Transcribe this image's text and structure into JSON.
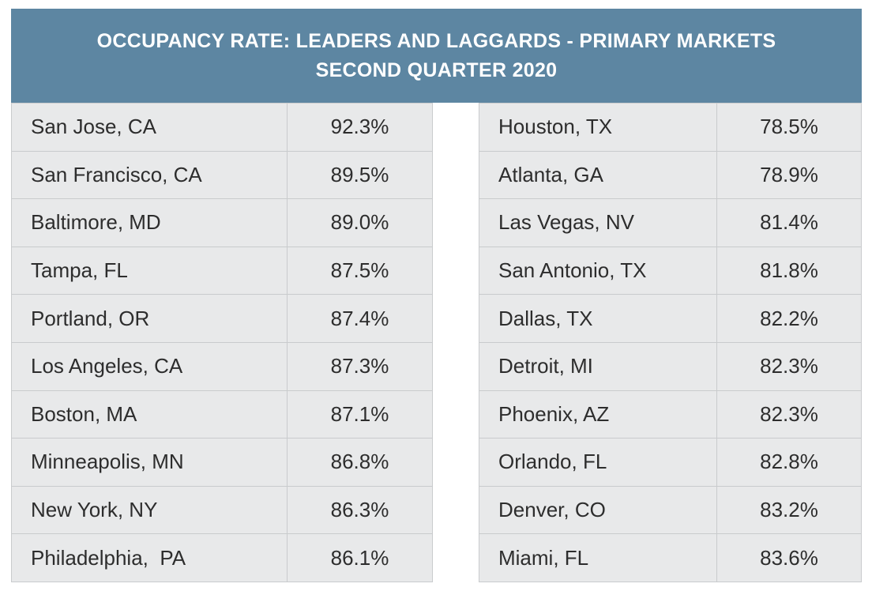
{
  "header": {
    "title_line1": "OCCUPANCY RATE: LEADERS AND LAGGARDS - PRIMARY MARKETS",
    "title_line2": "SECOND QUARTER 2020"
  },
  "chart_data": [
    {
      "type": "table",
      "rows": [
        {
          "market": "San Jose, CA",
          "rate": "92.3%"
        },
        {
          "market": "San Francisco, CA",
          "rate": "89.5%"
        },
        {
          "market": "Baltimore, MD",
          "rate": "89.0%"
        },
        {
          "market": "Tampa, FL",
          "rate": "87.5%"
        },
        {
          "market": "Portland, OR",
          "rate": "87.4%"
        },
        {
          "market": "Los Angeles, CA",
          "rate": "87.3%"
        },
        {
          "market": "Boston, MA",
          "rate": "87.1%"
        },
        {
          "market": "Minneapolis, MN",
          "rate": "86.8%"
        },
        {
          "market": "New York, NY",
          "rate": "86.3%"
        },
        {
          "market": "Philadelphia,  PA",
          "rate": "86.1%"
        }
      ]
    },
    {
      "type": "table",
      "rows": [
        {
          "market": "Houston, TX",
          "rate": "78.5%"
        },
        {
          "market": "Atlanta, GA",
          "rate": "78.9%"
        },
        {
          "market": "Las Vegas, NV",
          "rate": "81.4%"
        },
        {
          "market": "San Antonio, TX",
          "rate": "81.8%"
        },
        {
          "market": "Dallas, TX",
          "rate": "82.2%"
        },
        {
          "market": "Detroit, MI",
          "rate": "82.3%"
        },
        {
          "market": "Phoenix, AZ",
          "rate": "82.3%"
        },
        {
          "market": "Orlando, FL",
          "rate": "82.8%"
        },
        {
          "market": "Denver, CO",
          "rate": "83.2%"
        },
        {
          "market": "Miami, FL",
          "rate": "83.6%"
        }
      ]
    }
  ]
}
